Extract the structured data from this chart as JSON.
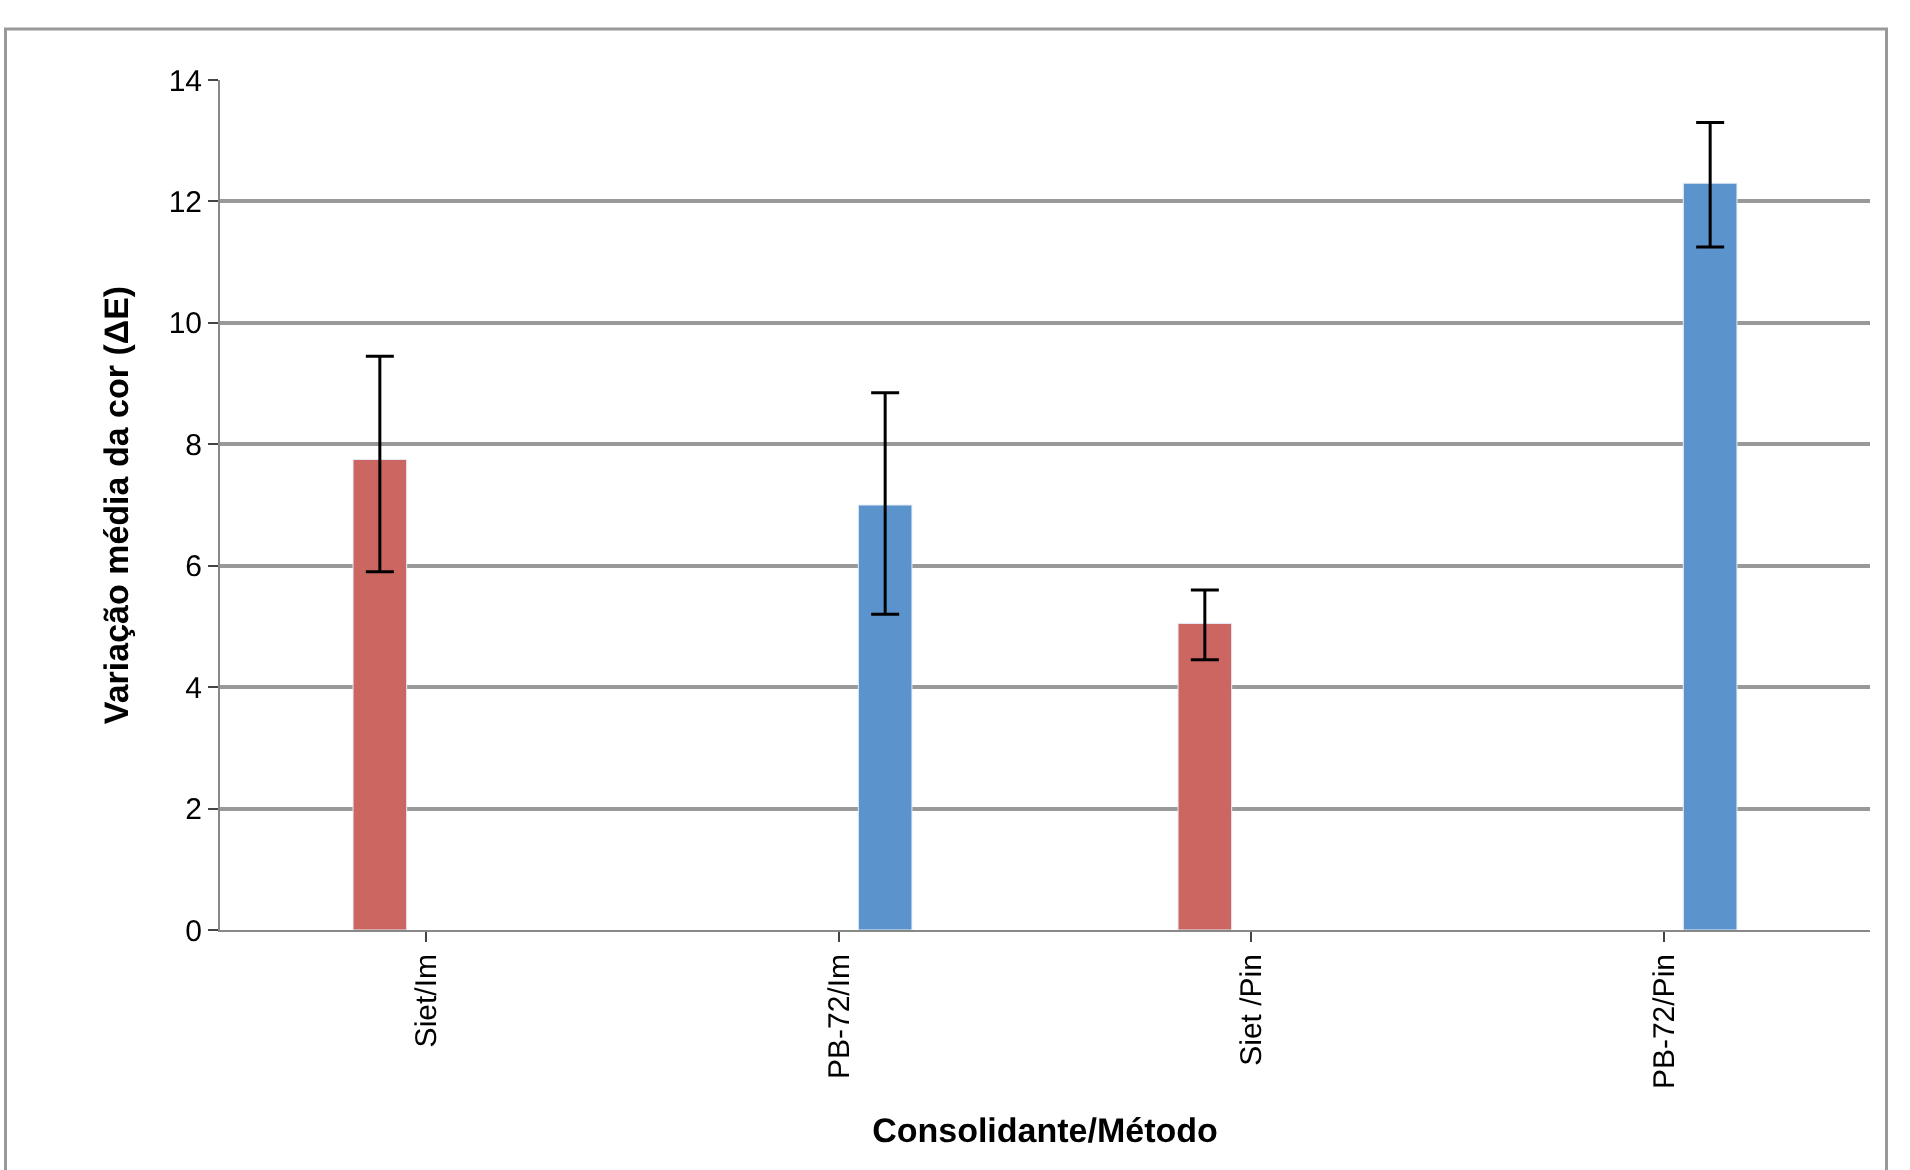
{
  "chart_data": {
    "type": "bar",
    "xlabel": "Consolidante/Método",
    "ylabel": "Variação média da cor (ΔE)",
    "categories": [
      "Siet/Im",
      "PB-72/Im",
      "Siet /Pin",
      "PB-72/Pin"
    ],
    "series": [
      {
        "color": "#cc6660",
        "values": [
          7.75,
          null,
          5.05,
          null
        ],
        "errors": [
          [
            5.9,
            9.45
          ],
          null,
          [
            4.45,
            5.6
          ],
          null
        ]
      },
      {
        "color": "#5b93cc",
        "values": [
          null,
          7.0,
          null,
          12.3
        ],
        "errors": [
          null,
          [
            5.2,
            8.85
          ],
          null,
          [
            11.25,
            13.3
          ]
        ]
      }
    ],
    "ylim": [
      0,
      14
    ],
    "yticks": [
      0,
      2,
      4,
      6,
      8,
      10,
      12,
      14
    ],
    "grid": "y"
  }
}
